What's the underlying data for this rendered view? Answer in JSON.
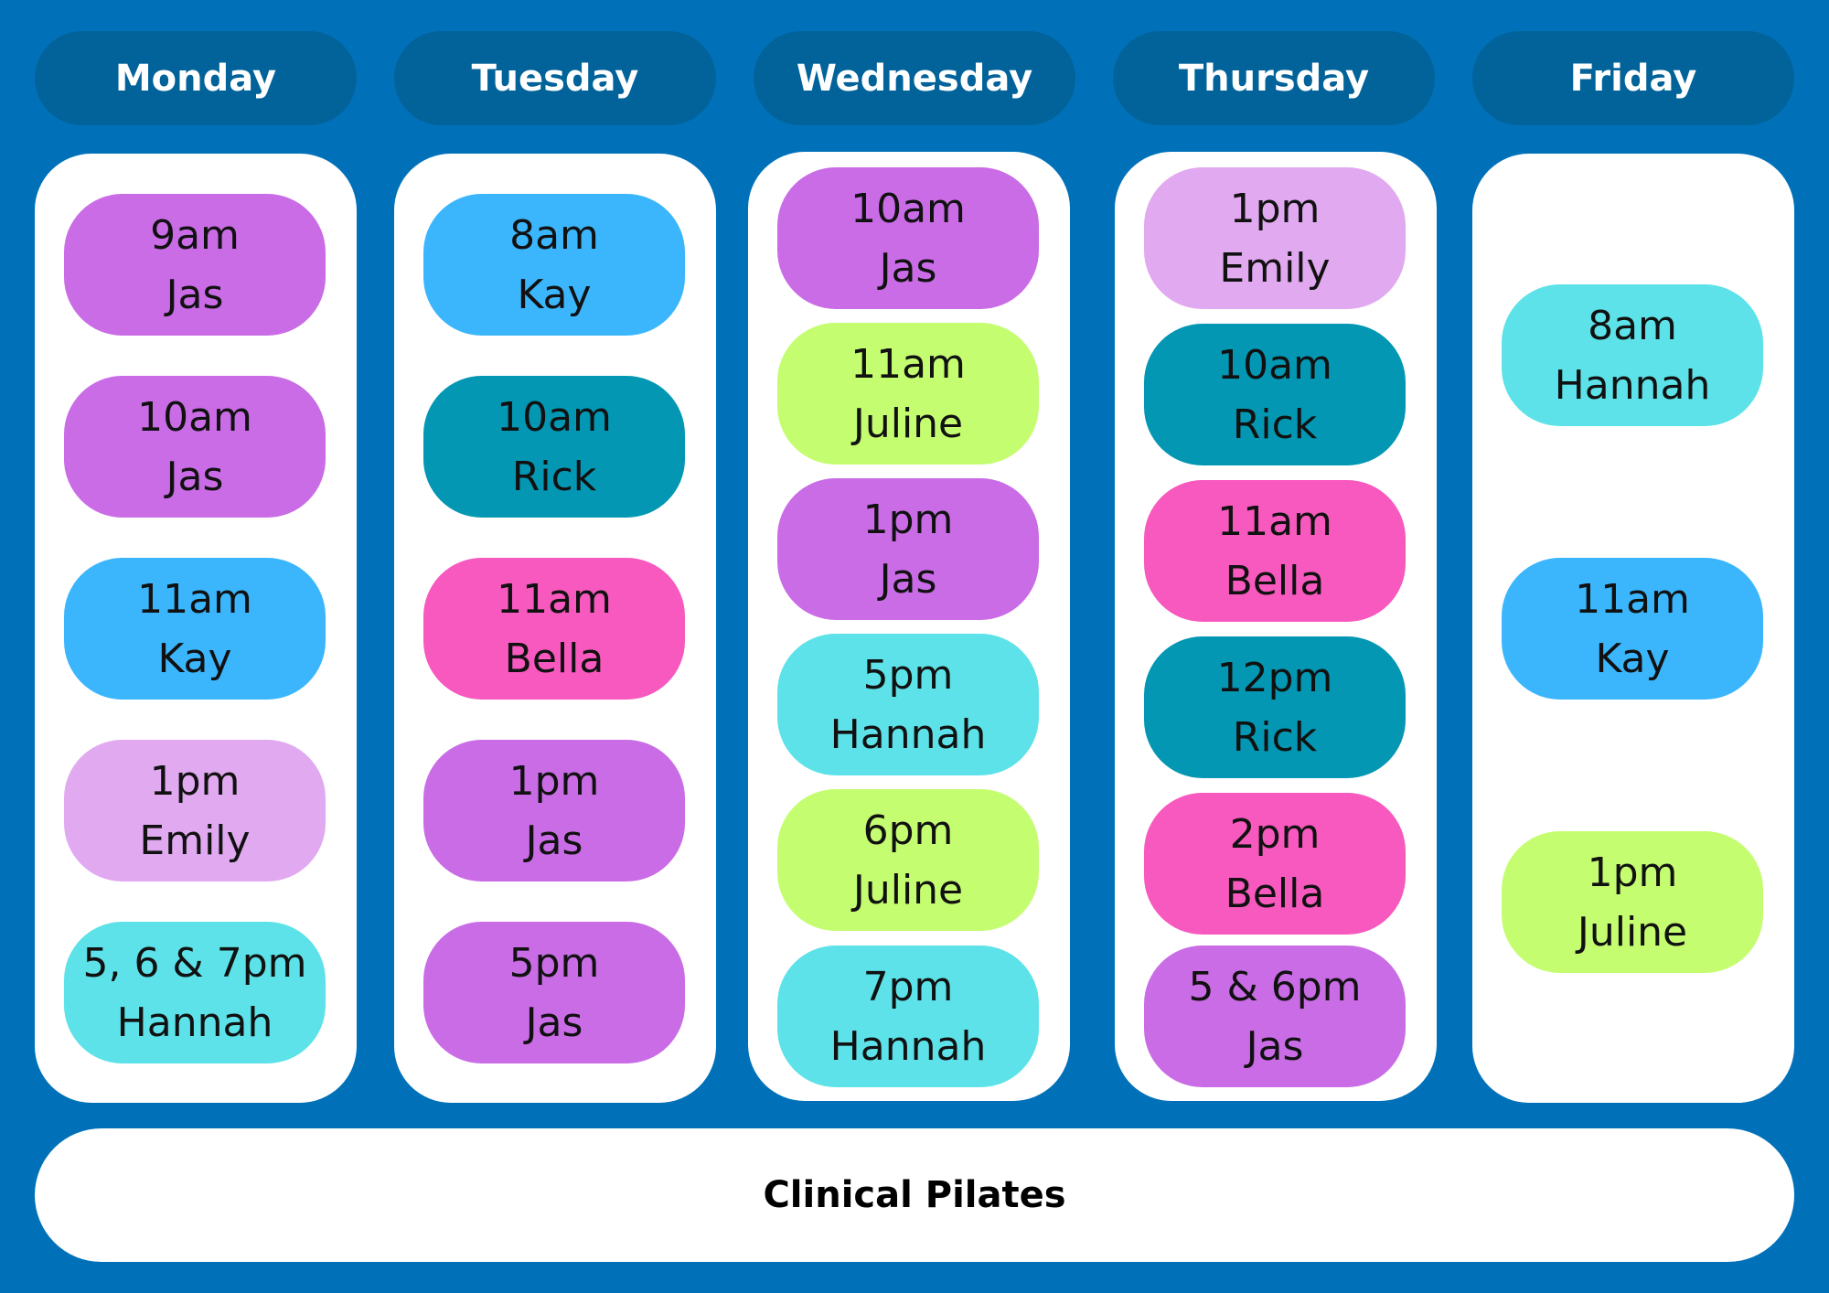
{
  "colors": {
    "background": "#0071b9",
    "header_pill": "#02639a",
    "column_card": "#ffffff",
    "purple": "#c96ce6",
    "blue": "#3bb6fd",
    "teal": "#0397b3",
    "pink": "#f759be",
    "lavender": "#e1a9f0",
    "cyan": "#5ce2e8",
    "lime": "#c5fd70"
  },
  "days": [
    {
      "name": "Monday",
      "slots": [
        {
          "time": "9am",
          "instructor": "Jas",
          "color": "purple"
        },
        {
          "time": "10am",
          "instructor": "Jas",
          "color": "purple"
        },
        {
          "time": "11am",
          "instructor": "Kay",
          "color": "blue"
        },
        {
          "time": "1pm",
          "instructor": "Emily",
          "color": "lavender"
        },
        {
          "time": "5, 6 & 7pm",
          "instructor": "Hannah",
          "color": "cyan"
        }
      ]
    },
    {
      "name": "Tuesday",
      "slots": [
        {
          "time": "8am",
          "instructor": "Kay",
          "color": "blue"
        },
        {
          "time": "10am",
          "instructor": "Rick",
          "color": "teal"
        },
        {
          "time": "11am",
          "instructor": "Bella",
          "color": "pink"
        },
        {
          "time": "1pm",
          "instructor": "Jas",
          "color": "purple"
        },
        {
          "time": "5pm",
          "instructor": "Jas",
          "color": "purple"
        }
      ]
    },
    {
      "name": "Wednesday",
      "slots": [
        {
          "time": "10am",
          "instructor": "Jas",
          "color": "purple"
        },
        {
          "time": "11am",
          "instructor": "Juline",
          "color": "lime"
        },
        {
          "time": "1pm",
          "instructor": "Jas",
          "color": "purple"
        },
        {
          "time": "5pm",
          "instructor": "Hannah",
          "color": "cyan"
        },
        {
          "time": "6pm",
          "instructor": "Juline",
          "color": "lime"
        },
        {
          "time": "7pm",
          "instructor": "Hannah",
          "color": "cyan"
        }
      ]
    },
    {
      "name": "Thursday",
      "slots": [
        {
          "time": "1pm",
          "instructor": "Emily",
          "color": "lavender"
        },
        {
          "time": "10am",
          "instructor": "Rick",
          "color": "teal"
        },
        {
          "time": "11am",
          "instructor": "Bella",
          "color": "pink"
        },
        {
          "time": "12pm",
          "instructor": "Rick",
          "color": "teal"
        },
        {
          "time": "2pm",
          "instructor": "Bella",
          "color": "pink"
        },
        {
          "time": "5 & 6pm",
          "instructor": "Jas",
          "color": "purple"
        }
      ]
    },
    {
      "name": "Friday",
      "slots": [
        {
          "time": "8am",
          "instructor": "Hannah",
          "color": "cyan"
        },
        {
          "time": "11am",
          "instructor": "Kay",
          "color": "blue"
        },
        {
          "time": "1pm",
          "instructor": "Juline",
          "color": "lime"
        }
      ]
    }
  ],
  "footer": {
    "label": "Clinical Pilates"
  }
}
